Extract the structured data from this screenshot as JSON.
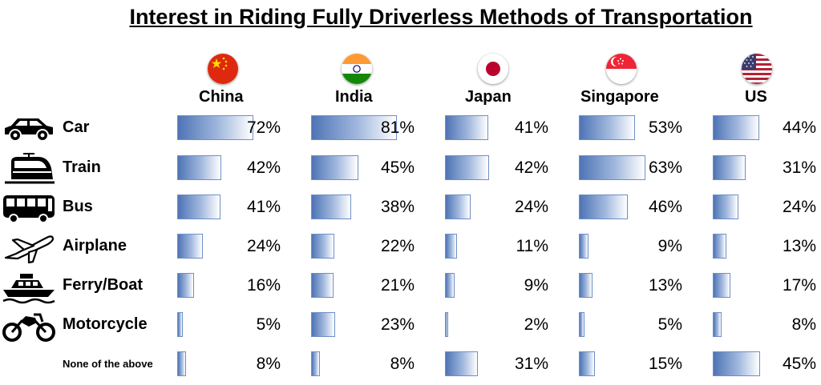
{
  "chart_data": {
    "type": "bar",
    "title": "Interest in Riding Fully Driverless Methods of Transportation",
    "categories": [
      "Car",
      "Train",
      "Bus",
      "Airplane",
      "Ferry/Boat",
      "Motorcycle",
      "None of the above"
    ],
    "category_icons": [
      "car-icon",
      "train-icon",
      "bus-icon",
      "airplane-icon",
      "boat-icon",
      "motorcycle-icon",
      ""
    ],
    "series": [
      {
        "name": "China",
        "flag": "china-flag-icon",
        "values": [
          72,
          42,
          41,
          24,
          16,
          5,
          8
        ]
      },
      {
        "name": "India",
        "flag": "india-flag-icon",
        "values": [
          81,
          45,
          38,
          22,
          21,
          23,
          8
        ]
      },
      {
        "name": "Japan",
        "flag": "japan-flag-icon",
        "values": [
          41,
          42,
          24,
          11,
          9,
          2,
          31
        ]
      },
      {
        "name": "Singapore",
        "flag": "singapore-flag-icon",
        "values": [
          53,
          63,
          46,
          9,
          13,
          5,
          15
        ]
      },
      {
        "name": "US",
        "flag": "us-flag-icon",
        "values": [
          44,
          31,
          24,
          13,
          17,
          8,
          45
        ]
      }
    ],
    "value_suffix": "%",
    "xlim": [
      0,
      100
    ],
    "bar_color": "#4e74b5",
    "bar_border": "#6e8fc6"
  }
}
